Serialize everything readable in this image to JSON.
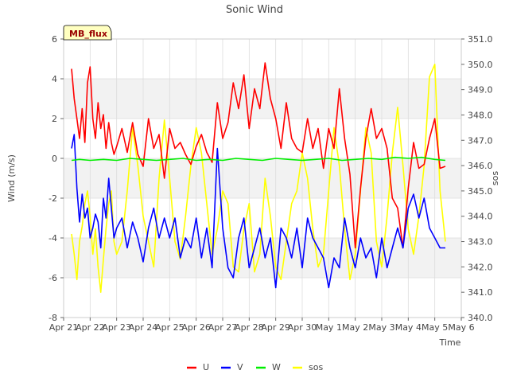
{
  "chart_data": {
    "type": "line",
    "title": "Sonic Wind",
    "xlabel": "Time",
    "ylabel": "Wind (m/s)",
    "y2label": "sos",
    "badge": "MB_flux",
    "x_ticks": [
      "Apr 21",
      "Apr 22",
      "Apr 23",
      "Apr 24",
      "Apr 25",
      "Apr 26",
      "Apr 27",
      "Apr 28",
      "Apr 29",
      "Apr 30",
      "May 1",
      "May 2",
      "May 3",
      "May 4",
      "May 5",
      "May 6"
    ],
    "xlim": [
      0,
      15
    ],
    "ylim": [
      -8,
      6
    ],
    "y_ticks": [
      "-8",
      "-6",
      "-4",
      "-2",
      "0",
      "2",
      "4",
      "6"
    ],
    "y2lim": [
      340,
      351
    ],
    "y2_ticks": [
      "340.0",
      "341.0",
      "342.0",
      "343.0",
      "344.0",
      "345.0",
      "346.0",
      "347.0",
      "348.0",
      "349.0",
      "350.0",
      "351.0"
    ],
    "colors": {
      "U": "#ff0000",
      "V": "#0000ff",
      "W": "#00ee00",
      "sos": "#ffff00"
    },
    "series": [
      {
        "name": "U",
        "axis": "left",
        "color": "#ff0000",
        "x": [
          0.3,
          0.4,
          0.5,
          0.6,
          0.7,
          0.8,
          0.9,
          1.0,
          1.1,
          1.2,
          1.3,
          1.4,
          1.5,
          1.6,
          1.7,
          1.8,
          1.9,
          2.0,
          2.2,
          2.4,
          2.6,
          2.8,
          3.0,
          3.2,
          3.4,
          3.6,
          3.8,
          4.0,
          4.2,
          4.4,
          4.6,
          4.8,
          5.0,
          5.2,
          5.4,
          5.6,
          5.8,
          6.0,
          6.2,
          6.4,
          6.6,
          6.8,
          7.0,
          7.2,
          7.4,
          7.6,
          7.8,
          8.0,
          8.2,
          8.4,
          8.6,
          8.8,
          9.0,
          9.2,
          9.4,
          9.6,
          9.8,
          10.0,
          10.2,
          10.4,
          10.6,
          10.8,
          11.0,
          11.2,
          11.4,
          11.6,
          11.8,
          12.0,
          12.2,
          12.4,
          12.6,
          12.8,
          13.0,
          13.2,
          13.4,
          13.6,
          13.8,
          14.0,
          14.2,
          14.4
        ],
        "y": [
          4.5,
          3.0,
          2.0,
          1.0,
          2.5,
          0.8,
          3.8,
          4.6,
          2.0,
          1.0,
          2.8,
          1.5,
          2.2,
          0.5,
          1.8,
          0.8,
          0.2,
          0.6,
          1.5,
          0.3,
          1.8,
          0.2,
          -0.4,
          2.0,
          0.5,
          1.2,
          -1.0,
          1.5,
          0.5,
          0.8,
          0.2,
          -0.3,
          0.6,
          1.2,
          0.3,
          -0.2,
          2.8,
          1.0,
          1.8,
          3.8,
          2.5,
          4.2,
          1.5,
          3.5,
          2.5,
          4.8,
          3.0,
          2.0,
          0.5,
          2.8,
          1.0,
          0.5,
          0.3,
          2.0,
          0.5,
          1.5,
          -0.5,
          1.5,
          0.5,
          3.5,
          1.0,
          -0.8,
          -4.5,
          -1.5,
          1.0,
          2.5,
          1.0,
          1.5,
          0.5,
          -2.0,
          -2.5,
          -4.5,
          -1.5,
          0.8,
          -0.5,
          -0.3,
          1.0,
          2.0,
          -0.5,
          -0.4
        ]
      },
      {
        "name": "V",
        "axis": "left",
        "color": "#0000ff",
        "x": [
          0.3,
          0.4,
          0.5,
          0.6,
          0.7,
          0.8,
          0.9,
          1.0,
          1.1,
          1.2,
          1.3,
          1.4,
          1.5,
          1.6,
          1.7,
          1.8,
          1.9,
          2.0,
          2.2,
          2.4,
          2.6,
          2.8,
          3.0,
          3.2,
          3.4,
          3.6,
          3.8,
          4.0,
          4.2,
          4.4,
          4.6,
          4.8,
          5.0,
          5.2,
          5.4,
          5.6,
          5.8,
          6.0,
          6.2,
          6.4,
          6.6,
          6.8,
          7.0,
          7.2,
          7.4,
          7.6,
          7.8,
          8.0,
          8.2,
          8.4,
          8.6,
          8.8,
          9.0,
          9.2,
          9.4,
          9.6,
          9.8,
          10.0,
          10.2,
          10.4,
          10.6,
          10.8,
          11.0,
          11.2,
          11.4,
          11.6,
          11.8,
          12.0,
          12.2,
          12.4,
          12.6,
          12.8,
          13.0,
          13.2,
          13.4,
          13.6,
          13.8,
          14.0,
          14.2,
          14.4
        ],
        "y": [
          0.5,
          1.2,
          -1.5,
          -3.2,
          -1.8,
          -3.0,
          -2.5,
          -4.0,
          -3.5,
          -2.8,
          -3.2,
          -4.5,
          -2.0,
          -3.0,
          -1.0,
          -2.5,
          -4.0,
          -3.5,
          -3.0,
          -4.5,
          -3.2,
          -4.0,
          -5.2,
          -3.5,
          -2.5,
          -4.0,
          -3.0,
          -4.0,
          -3.0,
          -5.0,
          -4.0,
          -4.5,
          -3.0,
          -5.0,
          -3.5,
          -5.5,
          0.5,
          -3.5,
          -5.5,
          -6.0,
          -4.0,
          -3.0,
          -5.5,
          -4.5,
          -3.5,
          -5.0,
          -4.0,
          -6.5,
          -3.5,
          -4.0,
          -5.0,
          -3.5,
          -5.5,
          -3.0,
          -4.0,
          -4.5,
          -5.0,
          -6.5,
          -5.0,
          -5.5,
          -3.0,
          -4.5,
          -5.5,
          -4.0,
          -5.0,
          -4.5,
          -6.0,
          -4.0,
          -5.5,
          -4.5,
          -3.5,
          -4.5,
          -2.5,
          -1.8,
          -3.0,
          -2.0,
          -3.5,
          -4.0,
          -4.5,
          -4.5
        ]
      },
      {
        "name": "W",
        "axis": "left",
        "color": "#00ee00",
        "x": [
          0.3,
          0.6,
          1.0,
          1.5,
          2.0,
          2.5,
          3.0,
          3.5,
          4.0,
          4.5,
          5.0,
          5.5,
          6.0,
          6.5,
          7.0,
          7.5,
          8.0,
          8.5,
          9.0,
          9.5,
          10.0,
          10.5,
          11.0,
          11.5,
          12.0,
          12.5,
          13.0,
          13.5,
          14.0,
          14.4
        ],
        "y": [
          -0.1,
          -0.05,
          -0.1,
          -0.05,
          -0.1,
          0.0,
          -0.05,
          -0.1,
          -0.05,
          0.0,
          -0.1,
          -0.05,
          -0.1,
          0.0,
          -0.05,
          -0.1,
          0.0,
          -0.05,
          -0.1,
          -0.05,
          0.0,
          -0.1,
          -0.05,
          0.0,
          -0.05,
          0.05,
          0.0,
          0.05,
          -0.05,
          -0.1
        ]
      },
      {
        "name": "sos",
        "axis": "right",
        "color": "#ffff00",
        "x": [
          0.3,
          0.4,
          0.5,
          0.6,
          0.7,
          0.8,
          0.9,
          1.0,
          1.1,
          1.2,
          1.3,
          1.4,
          1.5,
          1.6,
          1.7,
          1.8,
          1.9,
          2.0,
          2.2,
          2.4,
          2.6,
          2.8,
          3.0,
          3.2,
          3.4,
          3.6,
          3.8,
          4.0,
          4.2,
          4.4,
          4.6,
          4.8,
          5.0,
          5.2,
          5.4,
          5.6,
          5.8,
          6.0,
          6.2,
          6.4,
          6.6,
          6.8,
          7.0,
          7.2,
          7.4,
          7.6,
          7.8,
          8.0,
          8.2,
          8.4,
          8.6,
          8.8,
          9.0,
          9.2,
          9.4,
          9.6,
          9.8,
          10.0,
          10.2,
          10.4,
          10.6,
          10.8,
          11.0,
          11.2,
          11.4,
          11.6,
          11.8,
          12.0,
          12.2,
          12.4,
          12.6,
          12.8,
          13.0,
          13.2,
          13.4,
          13.6,
          13.8,
          14.0,
          14.2,
          14.4
        ],
        "y": [
          343.3,
          342.5,
          341.5,
          343.0,
          343.6,
          344.5,
          345.0,
          344.0,
          342.5,
          343.5,
          342.0,
          341.0,
          342.3,
          343.5,
          344.5,
          345.0,
          343.0,
          342.5,
          343.0,
          345.0,
          347.5,
          346.0,
          344.0,
          343.0,
          342.0,
          345.5,
          347.8,
          345.5,
          343.0,
          342.3,
          344.0,
          346.0,
          347.5,
          346.5,
          344.5,
          342.5,
          343.5,
          345.0,
          344.5,
          342.0,
          341.8,
          343.5,
          344.5,
          341.8,
          342.5,
          345.5,
          344.0,
          342.0,
          341.5,
          343.0,
          344.5,
          345.0,
          346.5,
          345.5,
          343.5,
          342.0,
          342.5,
          345.0,
          347.5,
          346.0,
          343.5,
          341.5,
          342.5,
          345.0,
          347.5,
          346.5,
          343.0,
          342.0,
          344.0,
          346.5,
          348.3,
          346.0,
          343.5,
          342.5,
          344.0,
          346.0,
          349.5,
          350.0,
          345.0,
          343.0
        ]
      }
    ],
    "legend": [
      "U",
      "V",
      "W",
      "sos"
    ]
  }
}
